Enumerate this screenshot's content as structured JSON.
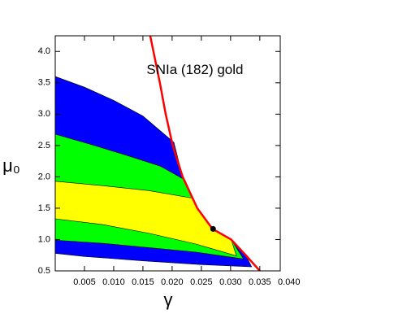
{
  "chart_data": {
    "type": "contour",
    "annotation": {
      "text": "SNIa (182) gold",
      "x": 0.0239,
      "y": 3.7
    },
    "xlabel": "γ",
    "ylabel": "μ₀",
    "xlim": [
      0,
      0.0385
    ],
    "ylim": [
      0.5,
      4.25
    ],
    "xticks": [
      0.005,
      {
        "value": 0.01,
        "label": "0.010"
      },
      0.015,
      {
        "value": 0.02,
        "label": "0.020"
      },
      0.025,
      {
        "value": 0.03,
        "label": "0.030"
      },
      0.035,
      {
        "value": 0.04,
        "label": "0.040"
      }
    ],
    "yticks": [
      0.5,
      {
        "value": 1,
        "label": "1.0"
      },
      1.5,
      {
        "value": 2,
        "label": "2.0"
      },
      2.5,
      {
        "value": 3,
        "label": "3.0"
      },
      3.5,
      {
        "value": 4,
        "label": "4.0"
      }
    ],
    "regions": [
      {
        "color": "#0000ff",
        "x": [
          0,
          0.005,
          0.01,
          0.015,
          0.0203,
          0.0218,
          0.0243,
          0.027,
          0.0301,
          0.0326,
          0.0336,
          0.025,
          0.015,
          0.005,
          0
        ],
        "y": [
          3.6,
          3.43,
          3.22,
          2.97,
          2.55,
          2.0,
          1.5,
          1.17,
          1.0,
          0.75,
          0.565,
          0.6,
          0.66,
          0.73,
          0.78
        ]
      },
      {
        "color": "#00ff00",
        "x": [
          0,
          0.006,
          0.012,
          0.018,
          0.0222,
          0.0243,
          0.027,
          0.0301,
          0.0322,
          0.024,
          0.016,
          0.008,
          0
        ],
        "y": [
          2.68,
          2.52,
          2.35,
          2.17,
          1.95,
          1.5,
          1.17,
          1.0,
          0.69,
          0.8,
          0.87,
          0.94,
          0.99
        ]
      },
      {
        "color": "#ffff00",
        "x": [
          0,
          0.008,
          0.016,
          0.0235,
          0.0243,
          0.027,
          0.0301,
          0.031,
          0.024,
          0.016,
          0.008,
          0
        ],
        "y": [
          1.93,
          1.86,
          1.78,
          1.66,
          1.5,
          1.17,
          1.0,
          0.74,
          0.93,
          1.1,
          1.24,
          1.33
        ]
      }
    ],
    "curve": {
      "color": "#ff0000",
      "x": [
        0.01625,
        0.0168,
        0.0179,
        0.0189,
        0.0201,
        0.0218,
        0.0243,
        0.0269,
        0.0301,
        0.0326,
        0.035
      ],
      "y": [
        4.25,
        4.0,
        3.5,
        3.0,
        2.5,
        2.0,
        1.5,
        1.17,
        1.0,
        0.75,
        0.5
      ]
    },
    "point": {
      "color": "#000000",
      "x": 0.027,
      "y": 1.17
    }
  }
}
